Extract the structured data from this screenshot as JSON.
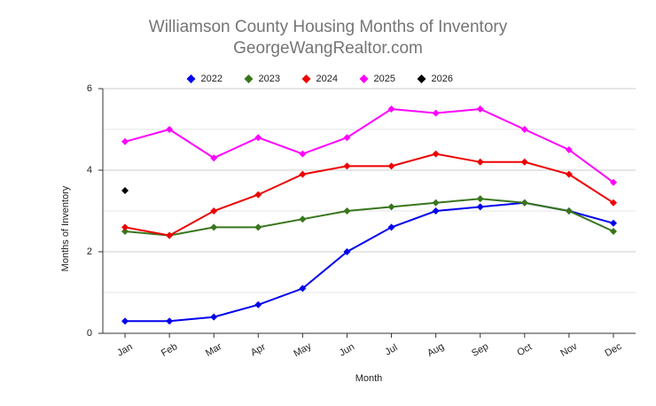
{
  "chart_data": {
    "type": "line",
    "title": "Williamson County Housing Months of Inventory",
    "subtitle": "GeorgeWangRealtor.com",
    "x_label": "Month",
    "y_label": "Months of Inventory",
    "categories": [
      "Jan",
      "Feb",
      "Mar",
      "Apr",
      "May",
      "Jun",
      "Jul",
      "Aug",
      "Sep",
      "Oct",
      "Nov",
      "Dec"
    ],
    "series": [
      {
        "name": "2022",
        "color": "#0000ee",
        "values": [
          0.3,
          0.3,
          0.4,
          0.7,
          1.1,
          2.0,
          2.6,
          3.0,
          3.1,
          3.2,
          3.0,
          2.7
        ]
      },
      {
        "name": "2023",
        "color": "#38761d",
        "values": [
          2.5,
          2.4,
          2.6,
          2.6,
          2.8,
          3.0,
          3.1,
          3.2,
          3.3,
          3.2,
          3.0,
          2.5
        ]
      },
      {
        "name": "2024",
        "color": "#ee0000",
        "values": [
          2.6,
          2.4,
          3.0,
          3.4,
          3.9,
          4.1,
          4.1,
          4.4,
          4.2,
          4.2,
          3.9,
          3.2
        ]
      },
      {
        "name": "2025",
        "color": "#ff00ff",
        "values": [
          4.7,
          5.0,
          4.3,
          4.8,
          4.4,
          4.8,
          5.5,
          5.4,
          5.5,
          5.0,
          4.5,
          3.7
        ]
      },
      {
        "name": "2026",
        "color": "#000000",
        "values": [
          3.5,
          null,
          null,
          null,
          null,
          null,
          null,
          null,
          null,
          null,
          null,
          null
        ]
      }
    ],
    "ylim": [
      0,
      6
    ],
    "yticks": [
      0,
      2,
      4,
      6
    ],
    "minor_yticks": [
      1,
      3,
      5
    ],
    "grid": true,
    "legend": "top"
  }
}
